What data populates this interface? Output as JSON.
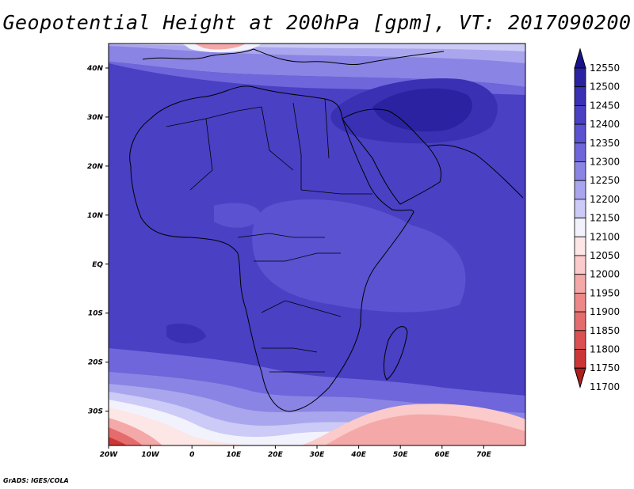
{
  "title": "Geopotential Height at 200hPa [gpm], VT: 2017090200",
  "credit": "GrADS: IGES/COLA",
  "chart_data": {
    "type": "heatmap",
    "variable": "Geopotential Height at 200hPa",
    "units": "gpm",
    "valid_time": "2017090200",
    "lon_range": [
      -20,
      80
    ],
    "lat_range": [
      -37,
      45
    ],
    "lon_ticks": [
      "20W",
      "10W",
      "0",
      "10E",
      "20E",
      "30E",
      "40E",
      "50E",
      "60E",
      "70E"
    ],
    "lat_ticks": [
      "40N",
      "30N",
      "20N",
      "10N",
      "EQ",
      "10S",
      "20S",
      "30S"
    ],
    "colorbar": {
      "levels": [
        "12550",
        "12500",
        "12450",
        "12400",
        "12350",
        "12300",
        "12250",
        "12200",
        "12150",
        "12100",
        "12050",
        "12000",
        "11950",
        "11900",
        "11850",
        "11800",
        "11750",
        "11700"
      ],
      "colors": [
        "#17148a",
        "#2a22a0",
        "#3a30b4",
        "#4a40c4",
        "#5a52d0",
        "#6e66da",
        "#8a84e4",
        "#aaa6ee",
        "#cccaf6",
        "#f2f2fc",
        "#fde6e6",
        "#fbcaca",
        "#f5a8a8",
        "#ee8888",
        "#e56c6c",
        "#db5050",
        "#cc3636",
        "#b01e1e"
      ]
    }
  }
}
